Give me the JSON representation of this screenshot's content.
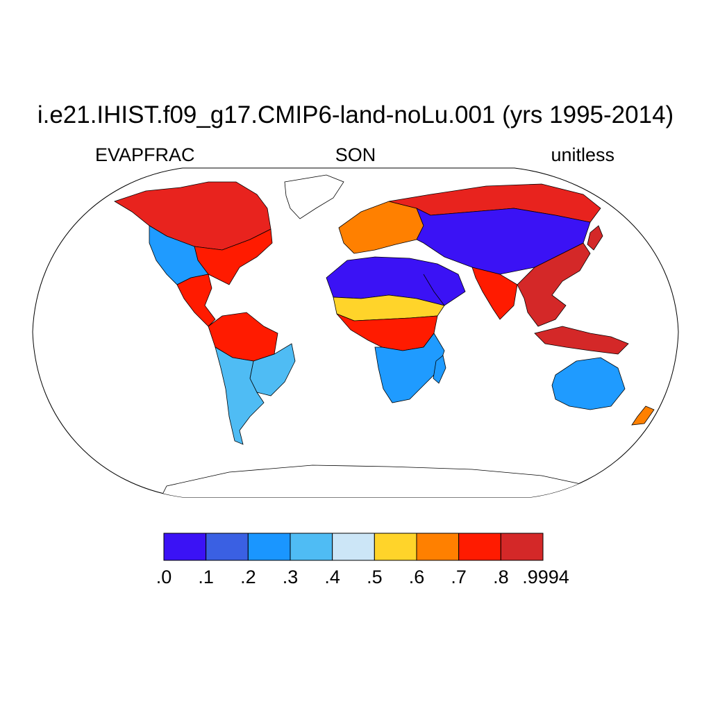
{
  "header": {
    "title": "i.e21.IHIST.f09_g17.CMIP6-land-noLu.001 (yrs 1995-2014)",
    "left_label": "EVAPFRAC",
    "center_label": "SON",
    "right_label": "unitless"
  },
  "map": {
    "projection": "robinson",
    "variable": "EVAPFRAC",
    "regions": [
      {
        "name": "north-america-north",
        "level": 0.75,
        "color": "#e8231e"
      },
      {
        "name": "north-america-east",
        "level": 0.7,
        "color": "#ff1b00"
      },
      {
        "name": "north-america-west",
        "level": 0.25,
        "color": "#1f9bff"
      },
      {
        "name": "central-america",
        "level": 0.75,
        "color": "#ff1b00"
      },
      {
        "name": "south-america-amazon",
        "level": 0.75,
        "color": "#ff1b00"
      },
      {
        "name": "south-america-east",
        "level": 0.3,
        "color": "#4fbcf4"
      },
      {
        "name": "south-america-south",
        "level": 0.3,
        "color": "#4fbcf4"
      },
      {
        "name": "sahara",
        "level": 0.05,
        "color": "#3b12f5"
      },
      {
        "name": "africa-sahel",
        "level": 0.55,
        "color": "#ffd42a"
      },
      {
        "name": "africa-central",
        "level": 0.75,
        "color": "#ff1b00"
      },
      {
        "name": "africa-south",
        "level": 0.2,
        "color": "#1f9bff"
      },
      {
        "name": "europe",
        "level": 0.6,
        "color": "#ff8000"
      },
      {
        "name": "russia-north",
        "level": 0.75,
        "color": "#e8231e"
      },
      {
        "name": "central-asia",
        "level": 0.1,
        "color": "#3b12f5"
      },
      {
        "name": "india",
        "level": 0.75,
        "color": "#ff1b00"
      },
      {
        "name": "southeast-asia",
        "level": 0.8,
        "color": "#d42828"
      },
      {
        "name": "australia",
        "level": 0.2,
        "color": "#1f9bff"
      }
    ]
  },
  "colorbar": {
    "colors": [
      "#3b12f5",
      "#3a60e3",
      "#1a96ff",
      "#4fbcf4",
      "#cce6f7",
      "#ffd42a",
      "#ff8000",
      "#ff1b00",
      "#d42828"
    ],
    "labels": [
      ".0",
      ".1",
      ".2",
      ".3",
      ".4",
      ".5",
      ".6",
      ".7",
      ".8",
      ".9994"
    ]
  }
}
